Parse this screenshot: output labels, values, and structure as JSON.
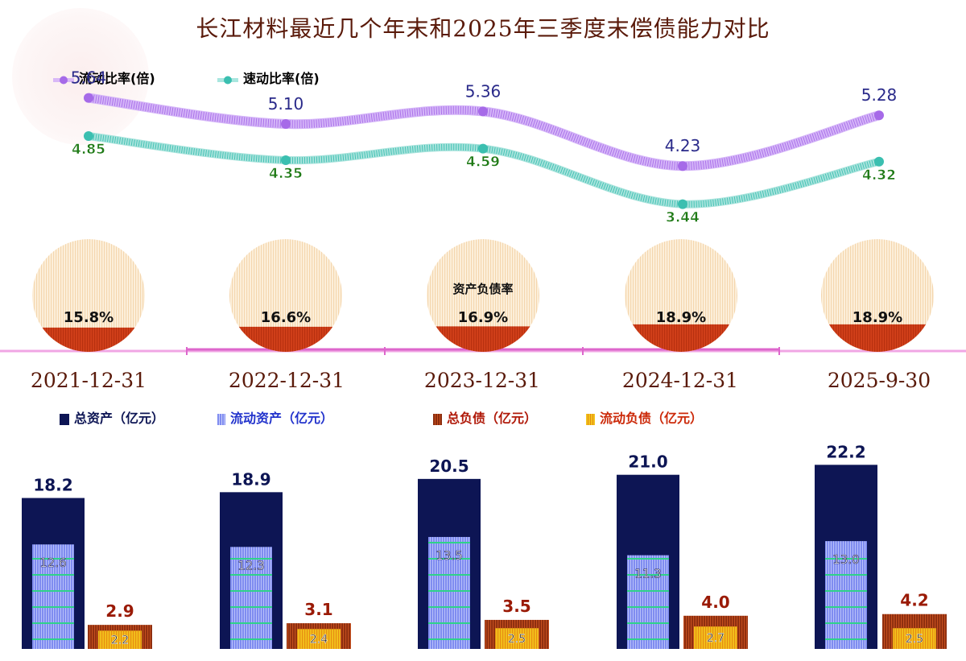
{
  "title": "长江材料最近几个年末和2025年三季度末偿债能力对比",
  "legend_top": {
    "current_ratio": "流动比率(倍)",
    "quick_ratio": "速动比率(倍)"
  },
  "legend_bottom": {
    "total_assets": "总资产（亿元）",
    "current_assets": "流动资产（亿元）",
    "total_liabilities": "总负债（亿元）",
    "current_liabilities": "流动负债（亿元）"
  },
  "pie_caption": "资产负债率",
  "colors": {
    "title": "#5a1a0a",
    "current_ratio": "#a66ae8",
    "quick_ratio": "#3bbfb0",
    "total_assets": "#0d1554",
    "current_assets": "#7f8cf0",
    "total_liabilities": "#8a2c0e",
    "current_liabilities": "#f2c21c",
    "pie_fill": "#fbe6c8",
    "pie_debt": "#d2401a"
  },
  "chart_data": [
    {
      "type": "line",
      "categories": [
        "2021-12-31",
        "2022-12-31",
        "2023-12-31",
        "2024-12-31",
        "2025-9-30"
      ],
      "series": [
        {
          "name": "流动比率(倍)",
          "values": [
            5.64,
            5.1,
            5.36,
            4.23,
            5.28
          ],
          "labels": [
            "5.64",
            "5.10",
            "5.36",
            "4.23",
            "5.28"
          ]
        },
        {
          "name": "速动比率(倍)",
          "values": [
            4.85,
            4.35,
            4.59,
            3.44,
            4.32
          ],
          "labels": [
            "4.85",
            "4.35",
            "4.59",
            "3.44",
            "4.32"
          ]
        }
      ]
    },
    {
      "type": "pie",
      "title": "资产负债率",
      "categories": [
        "2021-12-31",
        "2022-12-31",
        "2023-12-31",
        "2024-12-31",
        "2025-9-30"
      ],
      "values": [
        15.8,
        16.6,
        16.9,
        18.9,
        18.9
      ],
      "labels": [
        "15.8%",
        "16.6%",
        "16.9%",
        "18.9%",
        "18.9%"
      ]
    },
    {
      "type": "bar",
      "categories": [
        "2021-12-31",
        "2022-12-31",
        "2023-12-31",
        "2024-12-31",
        "2025-9-30"
      ],
      "series": [
        {
          "name": "总资产（亿元）",
          "values": [
            18.2,
            18.9,
            20.5,
            21.0,
            22.2
          ],
          "labels": [
            "18.2",
            "18.9",
            "20.5",
            "21.0",
            "22.2"
          ]
        },
        {
          "name": "流动资产（亿元）",
          "values": [
            12.6,
            12.3,
            13.5,
            11.3,
            13.0
          ],
          "labels": [
            "12.6",
            "12.3",
            "13.5",
            "11.3",
            "13.0"
          ]
        },
        {
          "name": "总负债（亿元）",
          "values": [
            2.9,
            3.1,
            3.5,
            4.0,
            4.2
          ],
          "labels": [
            "2.9",
            "3.1",
            "3.5",
            "4.0",
            "4.2"
          ]
        },
        {
          "name": "流动负债（亿元）",
          "values": [
            2.2,
            2.4,
            2.5,
            2.7,
            2.5
          ],
          "labels": [
            "2.2",
            "2.4",
            "2.5",
            "2.7",
            "2.5"
          ]
        }
      ]
    }
  ]
}
